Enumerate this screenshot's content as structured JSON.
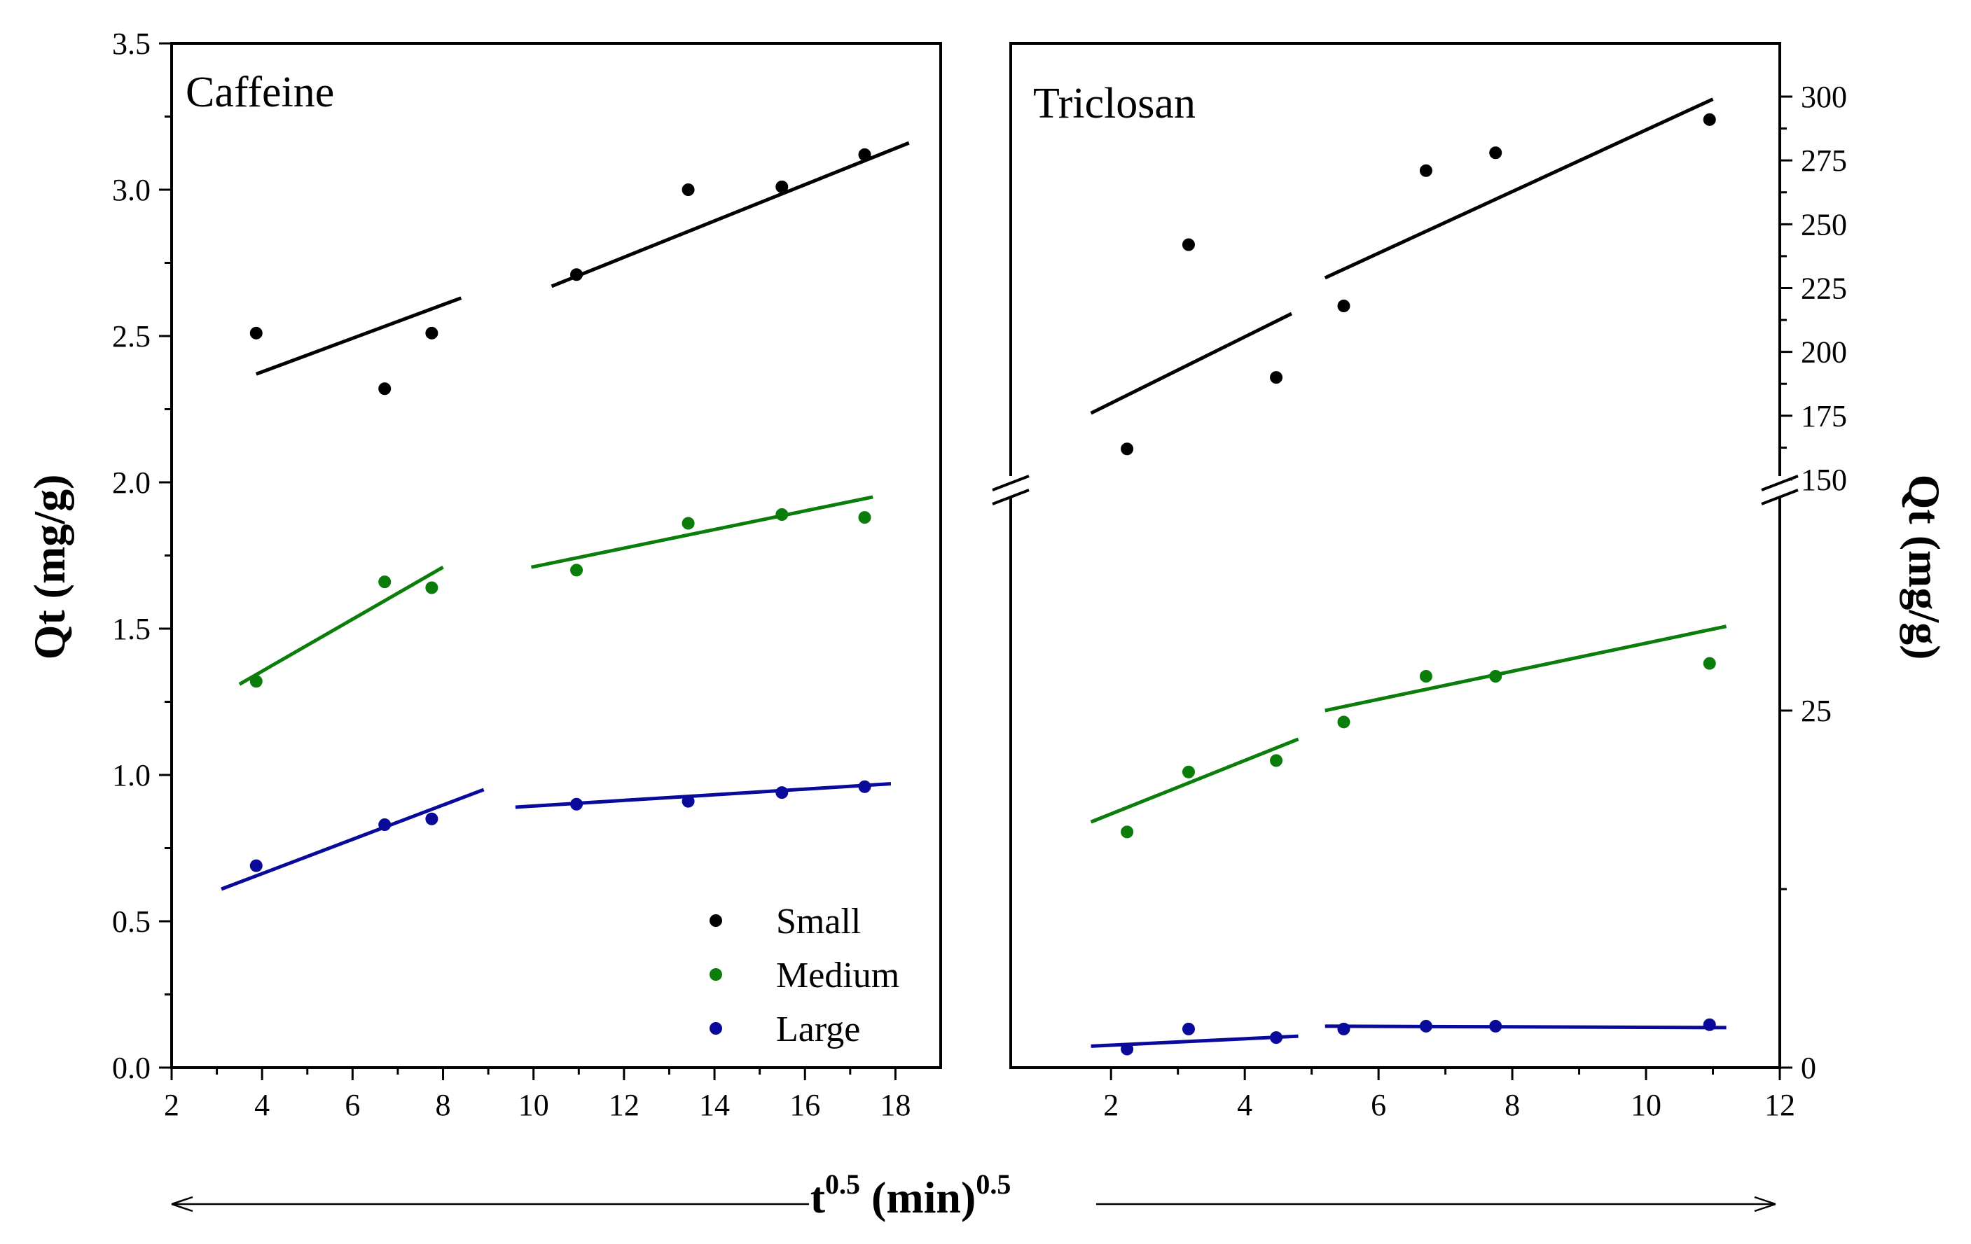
{
  "chart_data": [
    {
      "type": "scatter",
      "title": "Caffeine",
      "ylabel": "Qt (mg/g)",
      "xlim": [
        2,
        19
      ],
      "ylim": [
        0,
        3.5
      ],
      "xticks": [
        2,
        4,
        6,
        8,
        10,
        12,
        14,
        16,
        18
      ],
      "yticks": [
        0.0,
        0.5,
        1.0,
        1.5,
        2.0,
        2.5,
        3.0,
        3.5
      ],
      "ytick_labels": [
        "0.0",
        "0.5",
        "1.0",
        "1.5",
        "2.0",
        "2.5",
        "3.0",
        "3.5"
      ],
      "series": [
        {
          "name": "Small",
          "color": "#000000",
          "points": [
            [
              3.87,
              2.51
            ],
            [
              6.71,
              2.32
            ],
            [
              7.75,
              2.51
            ],
            [
              10.95,
              2.71
            ],
            [
              13.42,
              3.0
            ],
            [
              15.49,
              3.01
            ],
            [
              17.32,
              3.12
            ]
          ],
          "fits": [
            [
              [
                3.87,
                2.37
              ],
              [
                8.4,
                2.63
              ]
            ],
            [
              [
                10.4,
                2.67
              ],
              [
                18.3,
                3.16
              ]
            ]
          ]
        },
        {
          "name": "Medium",
          "color": "#0a7d0a",
          "points": [
            [
              3.87,
              1.32
            ],
            [
              6.71,
              1.66
            ],
            [
              7.75,
              1.64
            ],
            [
              10.95,
              1.7
            ],
            [
              13.42,
              1.86
            ],
            [
              15.49,
              1.89
            ],
            [
              17.32,
              1.88
            ]
          ],
          "fits": [
            [
              [
                3.5,
                1.31
              ],
              [
                8.0,
                1.71
              ]
            ],
            [
              [
                9.95,
                1.71
              ],
              [
                17.5,
                1.95
              ]
            ]
          ]
        },
        {
          "name": "Large",
          "color": "#0a0a9a",
          "points": [
            [
              3.87,
              0.69
            ],
            [
              6.71,
              0.83
            ],
            [
              7.75,
              0.85
            ],
            [
              10.95,
              0.9
            ],
            [
              13.42,
              0.91
            ],
            [
              15.49,
              0.94
            ],
            [
              17.32,
              0.96
            ]
          ],
          "fits": [
            [
              [
                3.1,
                0.61
              ],
              [
                8.9,
                0.95
              ]
            ],
            [
              [
                9.6,
                0.89
              ],
              [
                17.9,
                0.97
              ]
            ]
          ]
        }
      ],
      "legend": {
        "position": "bottom-right",
        "entries": [
          "Small",
          "Medium",
          "Large"
        ]
      }
    },
    {
      "type": "scatter",
      "title": "Triclosan",
      "ylabel": "Qt (mg/g)",
      "xlim": [
        0.5,
        12
      ],
      "ylim": [
        0,
        320
      ],
      "axis_break": [
        40,
        150
      ],
      "xticks": [
        2,
        4,
        6,
        8,
        10,
        12
      ],
      "yticks": [
        0,
        25,
        150,
        175,
        200,
        225,
        250,
        275,
        300
      ],
      "series": [
        {
          "name": "Small",
          "color": "#000000",
          "points": [
            [
              2.24,
              162
            ],
            [
              3.16,
              242
            ],
            [
              4.47,
              190
            ],
            [
              5.48,
              218
            ],
            [
              6.71,
              271
            ],
            [
              7.75,
              278
            ],
            [
              10.95,
              291
            ]
          ],
          "fits": [
            [
              [
                1.7,
                176
              ],
              [
                4.7,
                215
              ]
            ],
            [
              [
                5.2,
                229
              ],
              [
                11.0,
                299
              ]
            ]
          ]
        },
        {
          "name": "Medium",
          "color": "#0a7d0a",
          "points": [
            [
              2.24,
              16.5
            ],
            [
              3.16,
              20.7
            ],
            [
              4.47,
              21.5
            ],
            [
              5.48,
              24.2
            ],
            [
              6.71,
              27.4
            ],
            [
              7.75,
              27.4
            ],
            [
              10.95,
              28.3
            ]
          ],
          "fits": [
            [
              [
                1.7,
                17.2
              ],
              [
                4.8,
                23.0
              ]
            ],
            [
              [
                5.2,
                25.0
              ],
              [
                11.2,
                30.9
              ]
            ]
          ]
        },
        {
          "name": "Large",
          "color": "#0a0a9a",
          "points": [
            [
              2.24,
              1.3
            ],
            [
              3.16,
              2.7
            ],
            [
              4.47,
              2.1
            ],
            [
              5.48,
              2.7
            ],
            [
              6.71,
              2.9
            ],
            [
              7.75,
              2.9
            ],
            [
              10.95,
              3.0
            ]
          ],
          "fits": [
            [
              [
                1.7,
                1.5
              ],
              [
                4.8,
                2.2
              ]
            ],
            [
              [
                5.2,
                2.9
              ],
              [
                11.2,
                2.8
              ]
            ]
          ]
        }
      ]
    }
  ],
  "xlabel": "t0.5 (min)0.5",
  "xlabel_base": "t",
  "xlabel_exp": "0.5",
  "xlabel_unit": " (min)",
  "xlabel_unit_exp": "0.5",
  "ylabel_left": "Qt (mg/g)",
  "ylabel_right": "Qt (mg/g)"
}
